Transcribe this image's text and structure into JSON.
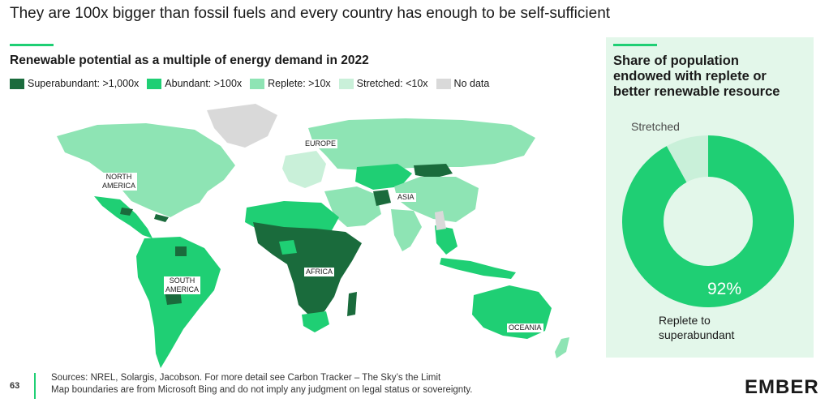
{
  "headline": "They are 100x bigger than fossil fuels and every country has enough to be self-sufficient",
  "map": {
    "title": "Renewable potential as a multiple of energy demand in 2022",
    "legend": [
      {
        "label": "Superabundant: >1,000x",
        "color": "#1a6b3c"
      },
      {
        "label": "Abundant: >100x",
        "color": "#1fcf74"
      },
      {
        "label": "Replete: >10x",
        "color": "#8ee4b4"
      },
      {
        "label": "Stretched: <10x",
        "color": "#c9f0d9"
      },
      {
        "label": "No data",
        "color": "#d9d9d9"
      }
    ],
    "region_labels": {
      "europe": "EUROPE",
      "north_america_1": "NORTH",
      "north_america_2": "AMERICA",
      "asia": "ASIA",
      "africa": "AFRICA",
      "south_america_1": "SOUTH",
      "south_america_2": "AMERICA",
      "oceania": "OCEANIA"
    }
  },
  "side": {
    "title_lines": [
      "Share of population",
      "endowed with replete or",
      "better renewable resource"
    ],
    "stretched_label": "Stretched",
    "percentage": "92%",
    "replete_label_lines": [
      "Replete to",
      "superabundant"
    ],
    "chart_data": {
      "type": "pie",
      "categories": [
        "Replete to superabundant",
        "Stretched"
      ],
      "values": [
        92,
        8
      ],
      "colors": [
        "#1fcf74",
        "#c9f0d9"
      ]
    }
  },
  "footer": {
    "page_number": "63",
    "sources_line1": "Sources: NREL, Solargis, Jacobson. For more detail see Carbon Tracker – The Sky’s the Limit",
    "sources_line2": "Map boundaries are from Microsoft Bing and do not imply any judgment on legal status or sovereignty."
  },
  "logo": "EMBER"
}
